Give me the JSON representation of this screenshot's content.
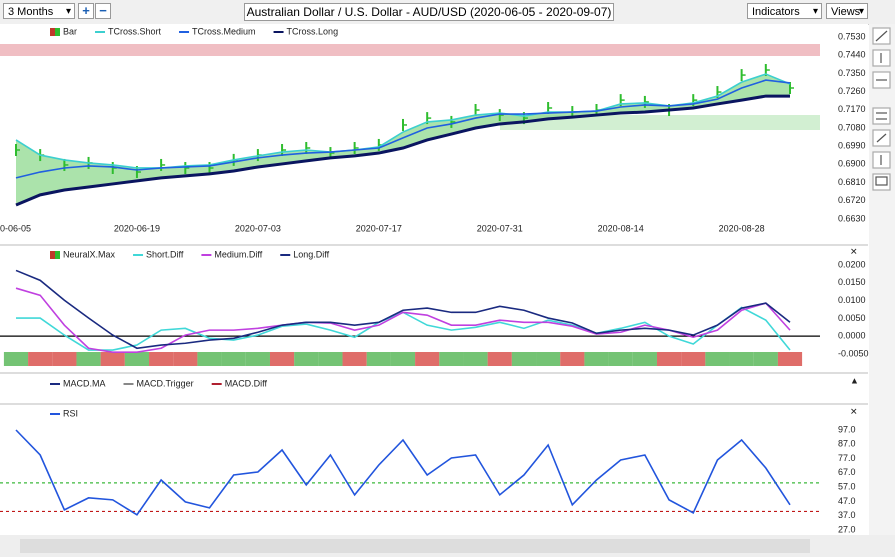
{
  "toolbar": {
    "period": "3 Months",
    "title": "Australian Dollar / U.S. Dollar - AUD/USD (2020-06-05 - 2020-09-07)",
    "indicators": "Indicators",
    "views": "Views"
  },
  "chart_data": [
    {
      "type": "line",
      "categories": [
        "0-06-05",
        null,
        null,
        null,
        null,
        "2020-06-19",
        null,
        null,
        null,
        null,
        "2020-07-03",
        null,
        null,
        null,
        null,
        "2020-07-17",
        null,
        null,
        null,
        null,
        "2020-07-31",
        null,
        null,
        null,
        null,
        "2020-08-14",
        null,
        null,
        null,
        null,
        "2020-08-28",
        null,
        null
      ],
      "series": [
        {
          "name": "Bar",
          "color": "#2ebd2e",
          "style": "bars",
          "values": [
            0.6971,
            0.6946,
            0.6897,
            0.6907,
            0.6882,
            0.6862,
            0.6897,
            0.6882,
            0.6882,
            0.6922,
            0.6946,
            0.6971,
            0.6981,
            0.6956,
            0.6981,
            0.6996,
            0.7095,
            0.7129,
            0.711,
            0.7169,
            0.7144,
            0.7129,
            0.7179,
            0.7159,
            0.7169,
            0.7218,
            0.7209,
            0.7169,
            0.7218,
            0.7258,
            0.7342,
            0.7367,
            0.7278
          ]
        },
        {
          "name": "TCross.Short",
          "color": "#3ccfcf",
          "values": [
            0.7021,
            0.6946,
            0.6922,
            0.6907,
            0.6897,
            0.6882,
            0.6882,
            0.6892,
            0.6897,
            0.6922,
            0.6942,
            0.6961,
            0.6971,
            0.6961,
            0.6971,
            0.6986,
            0.706,
            0.711,
            0.712,
            0.7144,
            0.7154,
            0.7139,
            0.7159,
            0.7159,
            0.7164,
            0.7199,
            0.7204,
            0.7189,
            0.7204,
            0.7238,
            0.7307,
            0.7347,
            0.7298
          ]
        },
        {
          "name": "TCross.Medium",
          "color": "#2060e0",
          "values": [
            0.6833,
            0.6862,
            0.6882,
            0.6892,
            0.6887,
            0.6872,
            0.6882,
            0.6887,
            0.6892,
            0.6912,
            0.6932,
            0.6946,
            0.6956,
            0.6961,
            0.6971,
            0.6981,
            0.7031,
            0.708,
            0.71,
            0.7129,
            0.7149,
            0.7149,
            0.7154,
            0.7159,
            0.7164,
            0.7184,
            0.7194,
            0.7189,
            0.7199,
            0.7223,
            0.7278,
            0.7317,
            0.7303
          ]
        },
        {
          "name": "TCross.Long",
          "color": "#0a1560",
          "values": [
            0.6699,
            0.6749,
            0.6773,
            0.6788,
            0.6803,
            0.6818,
            0.6833,
            0.6843,
            0.6853,
            0.6867,
            0.6887,
            0.6902,
            0.6917,
            0.6932,
            0.6942,
            0.6956,
            0.6981,
            0.7021,
            0.705,
            0.708,
            0.71,
            0.711,
            0.7125,
            0.7134,
            0.7144,
            0.7154,
            0.7159,
            0.7169,
            0.7179,
            0.7199,
            0.7218,
            0.7238,
            0.7238
          ]
        }
      ],
      "ylim": [
        0.6575,
        0.7575
      ],
      "yticks": [
        {
          "value": 0.753,
          "label": "0.7530"
        },
        {
          "value": 0.744,
          "label": "0.7440"
        },
        {
          "value": 0.735,
          "label": "0.7350"
        },
        {
          "value": 0.726,
          "label": "0.7260"
        },
        {
          "value": 0.717,
          "label": "0.7170"
        },
        {
          "value": 0.708,
          "label": "0.7080"
        },
        {
          "value": 0.699,
          "label": "0.6990"
        },
        {
          "value": 0.69,
          "label": "0.6900"
        },
        {
          "value": 0.681,
          "label": "0.6810"
        },
        {
          "value": 0.672,
          "label": "0.6720"
        },
        {
          "value": 0.663,
          "label": "0.6630"
        }
      ],
      "fill_color": "#8fd98f"
    },
    {
      "type": "line",
      "series": [
        {
          "name": "NeuralX.Max",
          "style": "strip",
          "colors": [
            "#5cb85c",
            "#d9534f",
            "#d9534f",
            "#5cb85c",
            "#d9534f",
            "#5cb85c",
            "#d9534f",
            "#d9534f",
            "#5cb85c",
            "#5cb85c",
            "#5cb85c",
            "#d9534f",
            "#5cb85c",
            "#5cb85c",
            "#d9534f",
            "#5cb85c",
            "#5cb85c",
            "#d9534f",
            "#5cb85c",
            "#5cb85c",
            "#d9534f",
            "#5cb85c",
            "#5cb85c",
            "#d9534f",
            "#5cb85c",
            "#5cb85c",
            "#5cb85c",
            "#d9534f",
            "#d9534f",
            "#5cb85c",
            "#5cb85c",
            "#5cb85c",
            "#d9534f"
          ]
        },
        {
          "name": "Short.Diff",
          "color": "#40d8d8",
          "values": [
            0.0051,
            0.0051,
            0.0003,
            -0.0039,
            -0.0039,
            -0.0025,
            0.0017,
            0.0022,
            -0.0006,
            -0.0011,
            0.0003,
            0.0028,
            0.0034,
            0.0017,
            -0.0003,
            0.0039,
            0.0067,
            0.0031,
            0.0017,
            0.0025,
            0.0039,
            0.0022,
            0.0045,
            0.0031,
            0.0008,
            0.0022,
            0.0039,
            0,
            -0.0022,
            0.0031,
            0.0081,
            0.0045,
            -0.0039
          ]
        },
        {
          "name": "Medium.Diff",
          "color": "#c040e0",
          "values": [
            0.0135,
            0.0115,
            0.0031,
            -0.0034,
            -0.0045,
            -0.0045,
            -0.0034,
            0.0003,
            0.0017,
            0.0017,
            0.0022,
            0.0031,
            0.0039,
            0.0037,
            0.0017,
            0.0031,
            0.0067,
            0.0059,
            0.0031,
            0.0031,
            0.0045,
            0.0039,
            0.0039,
            0.0028,
            0.0006,
            0.0011,
            0.0031,
            0.0017,
            -0.0003,
            0.0017,
            0.0073,
            0.0093,
            0.0017
          ]
        },
        {
          "name": "Long.Diff",
          "color": "#1a2a80",
          "values": [
            0.0185,
            0.0157,
            0.0101,
            0.0051,
            0.0003,
            -0.0034,
            -0.0025,
            -0.002,
            -0.0011,
            -0.0006,
            0.0011,
            0.0031,
            0.0039,
            0.0039,
            0.0031,
            0.0039,
            0.0073,
            0.0079,
            0.0067,
            0.0067,
            0.0084,
            0.0073,
            0.0051,
            0.0037,
            0.0008,
            0.0017,
            0.0022,
            0.0017,
            0.0003,
            0.0031,
            0.0079,
            0.0093,
            0.0039
          ]
        }
      ],
      "ylim": [
        -0.0084,
        0.022
      ],
      "yticks": [
        {
          "value": 0.02,
          "label": "0.0200"
        },
        {
          "value": 0.015,
          "label": "0.0150"
        },
        {
          "value": 0.01,
          "label": "0.0100"
        },
        {
          "value": 0.005,
          "label": "0.0050"
        },
        {
          "value": 0,
          "label": "0.0000"
        },
        {
          "value": -0.005,
          "label": "-0.0050"
        }
      ],
      "zero_line": true
    },
    {
      "type": "line",
      "series": [
        {
          "name": "MACD.MA",
          "color": "#1a2a80"
        },
        {
          "name": "MACD.Trigger",
          "color": "#888888"
        },
        {
          "name": "MACD.Diff",
          "color": "#b02030"
        }
      ]
    },
    {
      "type": "line",
      "series": [
        {
          "name": "RSI",
          "color": "#2255dd",
          "values": [
            97,
            79.5,
            41.1,
            49.5,
            48.1,
            37.6,
            62,
            46.7,
            42.5,
            65.5,
            67.6,
            83,
            58.6,
            79.5,
            51.6,
            72.5,
            90,
            65.5,
            77.4,
            79.5,
            51.6,
            65.5,
            86.5,
            44.6,
            62,
            76,
            79.5,
            48.1,
            39,
            76,
            90,
            70.4,
            44.6
          ]
        }
      ],
      "ylim": [
        23.5,
        104
      ],
      "yticks": [
        {
          "value": 97,
          "label": "97.0"
        },
        {
          "value": 87,
          "label": "87.0"
        },
        {
          "value": 77,
          "label": "77.0"
        },
        {
          "value": 67,
          "label": "67.0"
        },
        {
          "value": 57,
          "label": "57.0"
        },
        {
          "value": 47,
          "label": "47.0"
        },
        {
          "value": 37,
          "label": "37.0"
        },
        {
          "value": 27,
          "label": "27.0"
        }
      ],
      "reference_lines": [
        {
          "value": 60,
          "color": "#3cb83c"
        },
        {
          "value": 40,
          "color": "#c01818"
        }
      ]
    }
  ]
}
